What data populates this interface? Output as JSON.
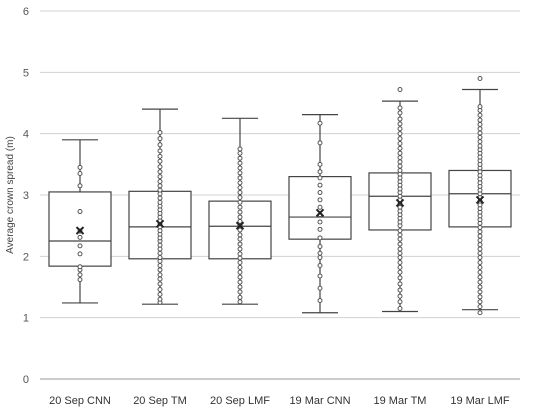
{
  "chart_data": {
    "type": "box",
    "ylabel": "Average crown spread (m)",
    "ylim": [
      0,
      6
    ],
    "yticks": [
      0,
      1,
      2,
      3,
      4,
      5,
      6
    ],
    "grid": true,
    "categories": [
      "20 Sep CNN",
      "20 Sep TM",
      "20 Sep LMF",
      "19 Mar CNN",
      "19 Mar TM",
      "19 Mar LMF"
    ],
    "boxes": [
      {
        "min": 1.24,
        "q1": 1.84,
        "median": 2.25,
        "q3": 3.05,
        "max": 3.9,
        "mean": 2.42,
        "points": [
          1.62,
          1.7,
          1.78,
          1.83,
          2.04,
          2.17,
          2.31,
          2.41,
          2.73,
          3.15,
          3.35,
          3.45
        ]
      },
      {
        "min": 1.22,
        "q1": 1.96,
        "median": 2.48,
        "q3": 3.06,
        "max": 4.4,
        "mean": 2.53,
        "points": [
          1.25,
          1.3,
          1.38,
          1.46,
          1.55,
          1.63,
          1.7,
          1.78,
          1.85,
          1.92,
          1.98,
          2.05,
          2.12,
          2.18,
          2.25,
          2.3,
          2.36,
          2.42,
          2.48,
          2.53,
          2.58,
          2.64,
          2.7,
          2.76,
          2.82,
          2.88,
          2.95,
          3.02,
          3.08,
          3.15,
          3.22,
          3.3,
          3.38,
          3.46,
          3.55,
          3.63,
          3.72,
          3.82,
          3.92,
          4.02
        ]
      },
      {
        "min": 1.22,
        "q1": 1.96,
        "median": 2.49,
        "q3": 2.9,
        "max": 4.25,
        "mean": 2.5,
        "points": [
          1.26,
          1.33,
          1.42,
          1.5,
          1.58,
          1.66,
          1.74,
          1.82,
          1.9,
          1.97,
          2.04,
          2.12,
          2.2,
          2.28,
          2.35,
          2.43,
          2.5,
          2.57,
          2.64,
          2.72,
          2.8,
          2.88,
          2.96,
          3.04,
          3.12,
          3.2,
          3.28,
          3.36,
          3.44,
          3.52,
          3.6,
          3.68,
          3.75
        ]
      },
      {
        "min": 1.08,
        "q1": 2.28,
        "median": 2.64,
        "q3": 3.3,
        "max": 4.31,
        "mean": 2.71,
        "points": [
          1.28,
          1.48,
          1.68,
          1.85,
          1.98,
          2.05,
          2.16,
          2.3,
          2.44,
          2.56,
          2.68,
          2.8,
          2.92,
          3.04,
          3.16,
          3.28,
          3.38,
          3.5,
          3.85,
          4.17
        ]
      },
      {
        "min": 1.1,
        "q1": 2.43,
        "median": 2.98,
        "q3": 3.36,
        "max": 4.53,
        "mean": 2.87,
        "points": [
          1.15,
          1.26,
          1.35,
          1.45,
          1.55,
          1.65,
          1.74,
          1.82,
          1.9,
          1.98,
          2.05,
          2.12,
          2.2,
          2.28,
          2.35,
          2.42,
          2.5,
          2.56,
          2.62,
          2.68,
          2.74,
          2.8,
          2.86,
          2.92,
          2.98,
          3.04,
          3.1,
          3.16,
          3.22,
          3.28,
          3.34,
          3.4,
          3.47,
          3.54,
          3.61,
          3.68,
          3.76,
          3.84,
          3.92,
          4.0,
          4.08,
          4.16,
          4.24,
          4.34,
          4.42,
          4.72
        ]
      },
      {
        "min": 1.13,
        "q1": 2.48,
        "median": 3.02,
        "q3": 3.4,
        "max": 4.72,
        "mean": 2.92,
        "points": [
          1.08,
          1.18,
          1.26,
          1.34,
          1.42,
          1.5,
          1.58,
          1.66,
          1.74,
          1.82,
          1.9,
          1.98,
          2.05,
          2.12,
          2.19,
          2.26,
          2.33,
          2.4,
          2.47,
          2.54,
          2.6,
          2.66,
          2.72,
          2.78,
          2.84,
          2.9,
          2.96,
          3.02,
          3.08,
          3.14,
          3.2,
          3.26,
          3.32,
          3.38,
          3.44,
          3.5,
          3.56,
          3.62,
          3.68,
          3.74,
          3.8,
          3.87,
          3.94,
          4.01,
          4.08,
          4.15,
          4.22,
          4.3,
          4.38,
          4.44,
          4.9
        ]
      }
    ]
  }
}
